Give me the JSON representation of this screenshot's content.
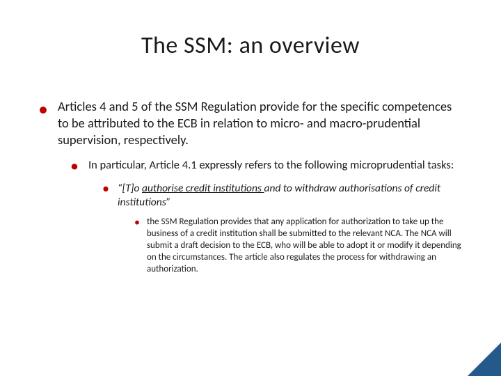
{
  "slide": {
    "title": "The SSM: an overview",
    "background_color": "#ffffff",
    "text_color": "#1a1a1a",
    "bullet_color": "#c00000",
    "corner_accent_color": "#245a8b",
    "title_fontsize": 34,
    "bullets": {
      "lvl1_text": "Articles 4 and 5 of the SSM Regulation provide for the specific competences to be attributed to the ECB in relation to micro- and macro-prudential supervision, respectively.",
      "lvl1_fontsize": 18.5,
      "lvl2_text": "In particular, Article 4.1 expressly refers to the following microprudential tasks:",
      "lvl2_fontsize": 16.5,
      "lvl3_prefix": "“[T]o ",
      "lvl3_underlined": "authorise credit institutions ",
      "lvl3_suffix": "and to withdraw authorisations of credit institutions”",
      "lvl3_fontsize": 15.5,
      "lvl3_fontstyle": "italic",
      "lvl4_text": "the SSM Regulation provides that any application for authorization to take up the business of a credit institution shall be submitted to the relevant NCA. The NCA will submit a draft decision to the ECB, who will be able to adopt it or modify it depending on the circumstances. The article also regulates the process for withdrawing an authorization.",
      "lvl4_fontsize": 13
    }
  }
}
